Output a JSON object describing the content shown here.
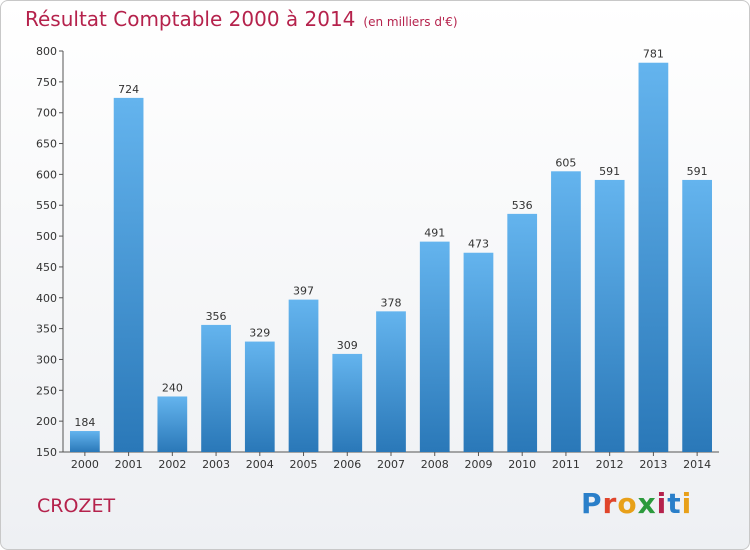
{
  "header": {
    "title": "Résultat Comptable 2000 à 2014",
    "subtitle": "(en milliers d'€)"
  },
  "footer": {
    "place": "CROZET",
    "logo_letters": [
      "P",
      "r",
      "o",
      "x",
      "i",
      "t",
      "i"
    ]
  },
  "chart_data": {
    "type": "bar",
    "title": "Résultat Comptable 2000 à 2014",
    "subtitle": "(en milliers d'€)",
    "xlabel": "",
    "ylabel": "",
    "categories": [
      "2000",
      "2001",
      "2002",
      "2003",
      "2004",
      "2005",
      "2006",
      "2007",
      "2008",
      "2009",
      "2010",
      "2011",
      "2012",
      "2013",
      "2014"
    ],
    "values": [
      184,
      724,
      240,
      356,
      329,
      397,
      309,
      378,
      491,
      473,
      536,
      605,
      591,
      781,
      591
    ],
    "ylim": [
      150,
      800
    ],
    "yticks": [
      150,
      200,
      250,
      300,
      350,
      400,
      450,
      500,
      550,
      600,
      650,
      700,
      750,
      800
    ],
    "grid": false,
    "bar_color": "#3d97d8",
    "bar_color_light": "#64b4ee",
    "bar_color_dark": "#2a78b8"
  }
}
